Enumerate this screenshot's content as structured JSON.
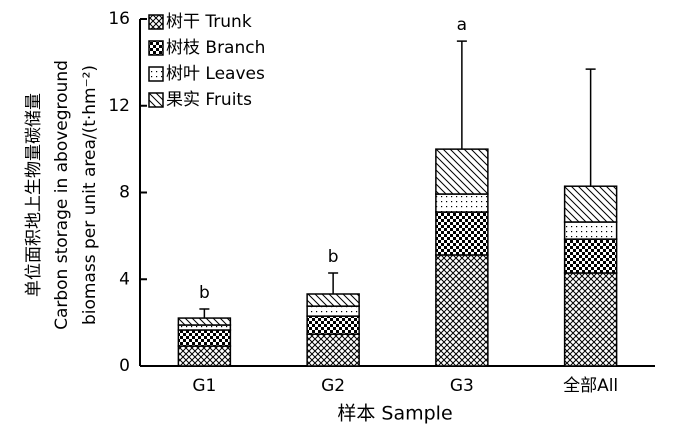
{
  "chart_data": {
    "type": "bar",
    "stacked": true,
    "x_label": "样本 Sample",
    "y_label": [
      "单位面积地上生物量碳储量",
      "Carbon storage in aboveground",
      "biomass per unit area/(t·hm⁻²)"
    ],
    "categories": [
      "G1",
      "G2",
      "G3",
      "全部All"
    ],
    "series": [
      {
        "name": "树干 Trunk",
        "color": "#000000",
        "pattern": "crosshatch",
        "values": [
          0.92,
          1.47,
          5.12,
          4.29
        ]
      },
      {
        "name": "树枝 Branch",
        "color": "#000000",
        "pattern": "checker",
        "values": [
          0.74,
          0.83,
          1.98,
          1.56
        ]
      },
      {
        "name": "树叶 Leaves",
        "color": "#000000",
        "pattern": "dots",
        "values": [
          0.23,
          0.46,
          0.83,
          0.79
        ]
      },
      {
        "name": "果实 Fruits",
        "color": "#000000",
        "pattern": "diagonal",
        "values": [
          0.32,
          0.56,
          2.07,
          1.65
        ]
      }
    ],
    "errors": [
      0.42,
      0.97,
      4.98,
      5.4
    ],
    "letters": [
      "b",
      "b",
      "a",
      null
    ],
    "ylim": [
      0,
      16
    ],
    "yticks": [
      0,
      4,
      8,
      12,
      16
    ],
    "legend": "upper left"
  }
}
